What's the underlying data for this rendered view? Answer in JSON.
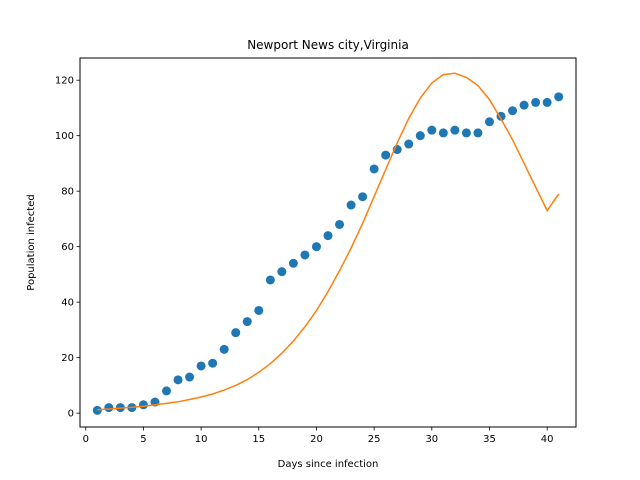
{
  "chart_data": {
    "type": "scatter",
    "title": "Newport News city,Virginia",
    "xlabel": "Days since infection",
    "ylabel": "Population infected",
    "xlim": [
      -0.5,
      42.5
    ],
    "ylim": [
      -5,
      128
    ],
    "xticks": [
      0,
      5,
      10,
      15,
      20,
      25,
      30,
      35,
      40
    ],
    "yticks": [
      0,
      20,
      40,
      60,
      80,
      100,
      120
    ],
    "grid": false,
    "series": [
      {
        "kind": "scatter",
        "color": "#1f77b4",
        "x": [
          1,
          2,
          3,
          4,
          5,
          6,
          7,
          8,
          9,
          10,
          11,
          12,
          13,
          14,
          15,
          16,
          17,
          18,
          19,
          20,
          21,
          22,
          23,
          24,
          25,
          26,
          27,
          28,
          29,
          30,
          31,
          32,
          33,
          34,
          35,
          36,
          37,
          38,
          39,
          40,
          41
        ],
        "y": [
          1,
          2,
          2,
          2,
          3,
          4,
          8,
          12,
          13,
          17,
          18,
          23,
          29,
          33,
          37,
          48,
          51,
          54,
          57,
          60,
          64,
          68,
          75,
          78,
          88,
          93,
          95,
          97,
          100,
          102,
          101,
          102,
          101,
          101,
          105,
          107,
          109,
          111,
          112,
          112,
          114
        ]
      },
      {
        "kind": "line",
        "color": "#ff7f0e",
        "x": [
          1,
          2,
          3,
          4,
          5,
          6,
          7,
          8,
          9,
          10,
          11,
          12,
          13,
          14,
          15,
          16,
          17,
          18,
          19,
          20,
          21,
          22,
          23,
          24,
          25,
          26,
          27,
          28,
          29,
          30,
          31,
          32,
          33,
          34,
          35,
          36,
          37,
          38,
          39,
          40,
          41
        ],
        "y": [
          1.2,
          1.5,
          1.8,
          2.1,
          2.5,
          3.0,
          3.5,
          4.1,
          4.9,
          5.8,
          6.9,
          8.3,
          10.0,
          12.1,
          14.7,
          17.8,
          21.6,
          26.0,
          31.1,
          37.0,
          43.8,
          51.3,
          59.5,
          68.4,
          78.0,
          87.8,
          97.4,
          106.2,
          113.6,
          119.0,
          122.0,
          122.5,
          121.0,
          118.0,
          113.0,
          106.0,
          98.5,
          90.0,
          81.5,
          73.0,
          79.0
        ]
      }
    ]
  }
}
